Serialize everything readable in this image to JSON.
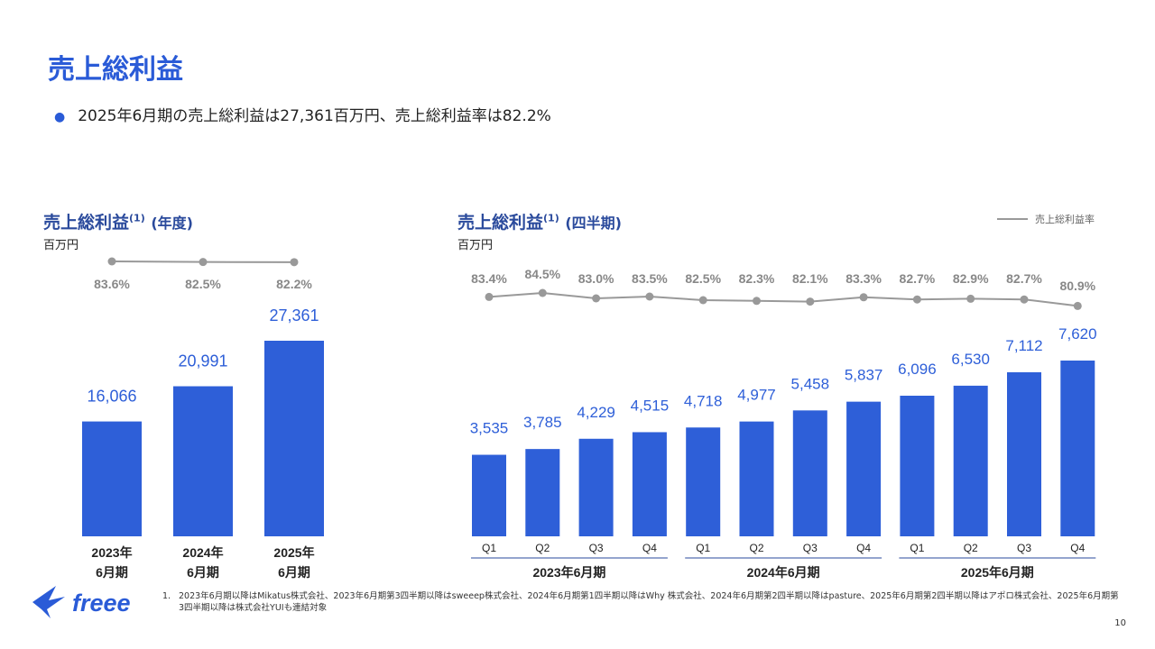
{
  "header": {
    "title": "売上総利益",
    "bullet": "2025年6月期の売上総利益は27,361百万円、売上総利益率は82.2%"
  },
  "annual": {
    "title": "売上総利益",
    "sup": "(1)",
    "paren": "(年度)",
    "unit": "百万円"
  },
  "quarterly": {
    "title": "売上総利益",
    "sup": "(1)",
    "paren": "(四半期)",
    "unit": "百万円",
    "legend": "売上総利益率"
  },
  "chart_data": [
    {
      "type": "bar",
      "categories": [
        "2023年\n6月期",
        "2024年\n6月期",
        "2025年\n6月期"
      ],
      "values": [
        16066,
        20991,
        27361
      ],
      "value_labels": [
        "16,066",
        "20,991",
        "27,361"
      ],
      "line_series": {
        "name": "売上総利益率",
        "values": [
          83.6,
          82.5,
          82.2
        ],
        "labels": [
          "83.6%",
          "82.5%",
          "82.2%"
        ]
      },
      "bar_color": "#2e5fd8",
      "line_color": "#999999"
    },
    {
      "type": "bar",
      "categories": [
        "Q1",
        "Q2",
        "Q3",
        "Q4",
        "Q1",
        "Q2",
        "Q3",
        "Q4",
        "Q1",
        "Q2",
        "Q3",
        "Q4"
      ],
      "groups": [
        "2023年6月期",
        "2024年6月期",
        "2025年6月期"
      ],
      "values": [
        3535,
        3785,
        4229,
        4515,
        4718,
        4977,
        5458,
        5837,
        6096,
        6530,
        7112,
        7620
      ],
      "value_labels": [
        "3,535",
        "3,785",
        "4,229",
        "4,515",
        "4,718",
        "4,977",
        "5,458",
        "5,837",
        "6,096",
        "6,530",
        "7,112",
        "7,620"
      ],
      "line_series": {
        "name": "売上総利益率",
        "values": [
          83.4,
          84.5,
          83.0,
          83.5,
          82.5,
          82.3,
          82.1,
          83.3,
          82.7,
          82.9,
          82.7,
          80.9
        ],
        "labels": [
          "83.4%",
          "84.5%",
          "83.0%",
          "83.5%",
          "82.5%",
          "82.3%",
          "82.1%",
          "83.3%",
          "82.7%",
          "82.9%",
          "82.7%",
          "80.9%"
        ]
      },
      "bar_color": "#2e5fd8",
      "line_color": "#999999"
    }
  ],
  "footnote": {
    "num": "1.",
    "text": "2023年6月期以降はMikatus株式会社、2023年6月期第3四半期以降はsweeep株式会社、2024年6月期第1四半期以降はWhy 株式会社、2024年6月期第2四半期以降はpasture、2025年6月期第2四半期以降はアポロ株式会社、2025年6月期第3四半期以降は株式会社YUIも連結対象"
  },
  "logo_text": "freee",
  "page_number": "10",
  "colors": {
    "accent": "#2a5bd7",
    "bar": "#2e5fd8",
    "line": "#999999",
    "text": "#222222"
  }
}
